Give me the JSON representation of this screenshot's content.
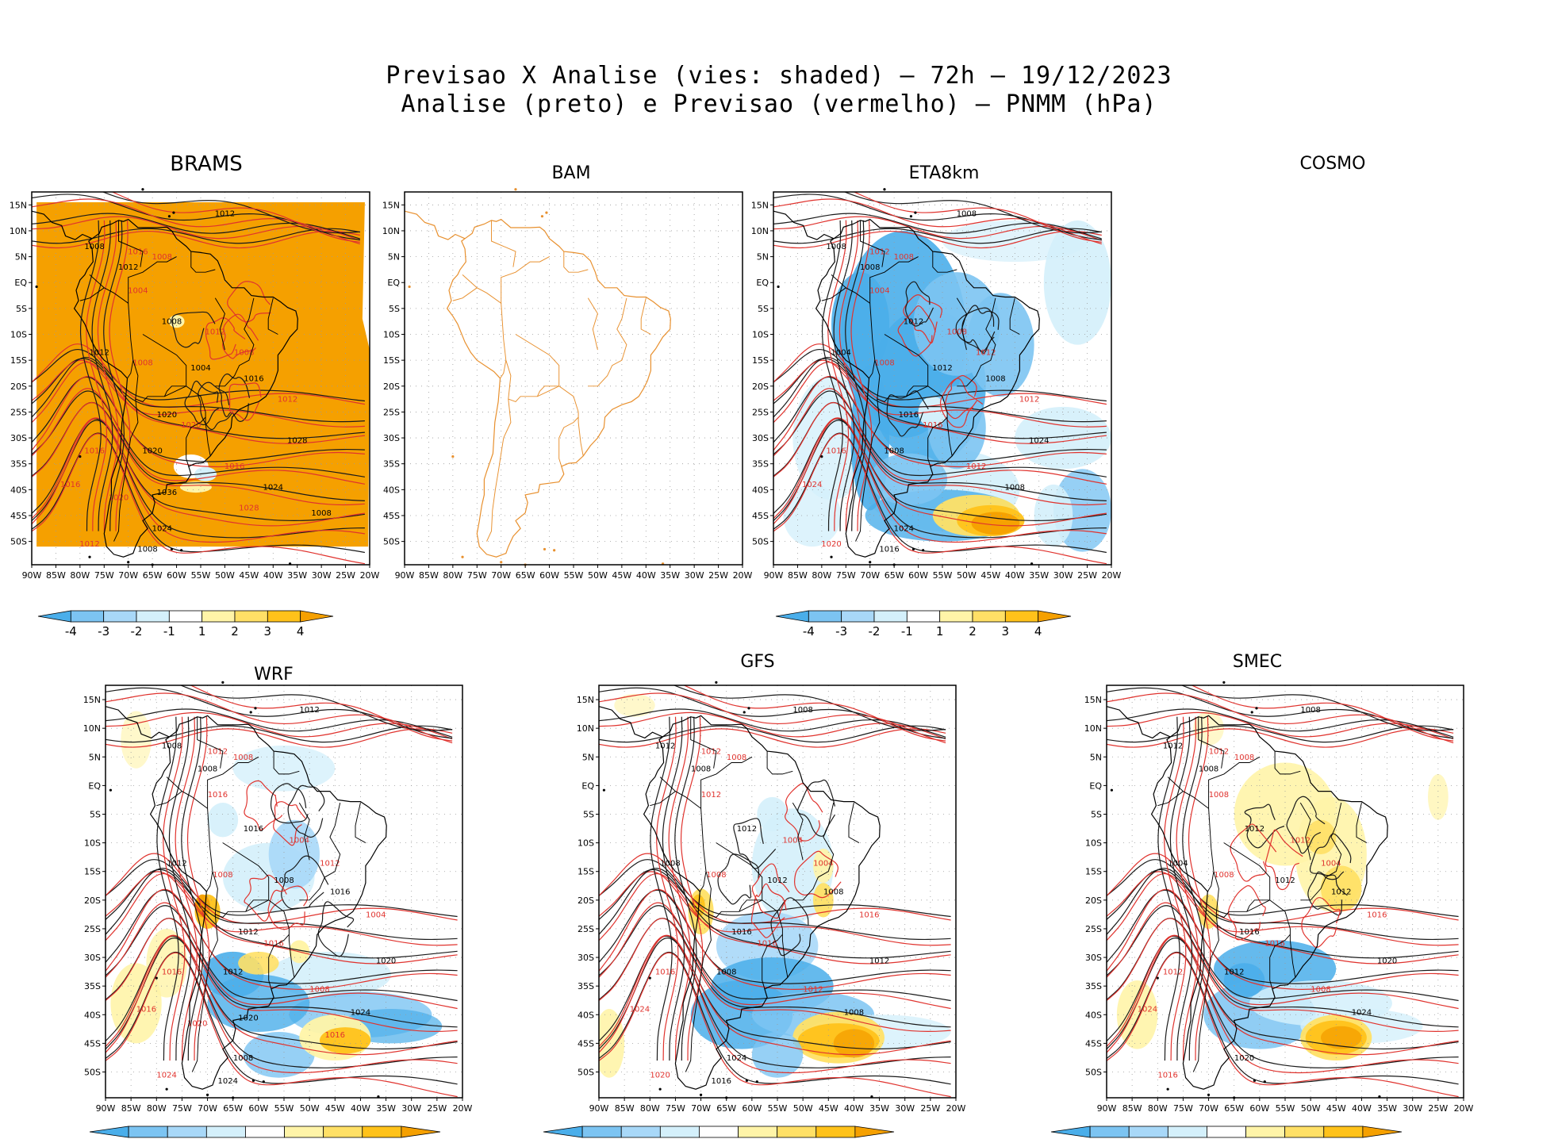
{
  "header": {
    "line1": "Previsao X Analise (vies: shaded) – 72h – 19/12/2023",
    "line2": "Analise (preto) e Previsao (vermelho) – PNMM (hPa)"
  },
  "axes": {
    "lat_labels": [
      "15N",
      "10N",
      "5N",
      "EQ",
      "5S",
      "10S",
      "15S",
      "20S",
      "25S",
      "30S",
      "35S",
      "40S",
      "45S",
      "50S"
    ],
    "lon_labels": [
      "90W",
      "85W",
      "80W",
      "75W",
      "70W",
      "65W",
      "60W",
      "55W",
      "50W",
      "45W",
      "40W",
      "35W",
      "30W",
      "25W",
      "20W"
    ]
  },
  "colorbar": {
    "labels": [
      "-4",
      "-3",
      "-2",
      "-1",
      "1",
      "2",
      "3",
      "4"
    ],
    "colors": [
      "#4aaeea",
      "#7cc4f2",
      "#a8d8f8",
      "#d4f0fb",
      "#ffffff",
      "#fff4a8",
      "#ffe066",
      "#ffc21a",
      "#f5a000"
    ]
  },
  "colors": {
    "analysis": "#1a1a1a",
    "forecast": "#e0332e",
    "bam_coast": "#e8902e",
    "brams_fill": "#f5a000"
  },
  "panels": {
    "brams": {
      "title": "BRAMS"
    },
    "bam": {
      "title": "BAM"
    },
    "eta": {
      "title": "ETA8km"
    },
    "cosmo": {
      "title": "COSMO"
    },
    "wrf": {
      "title": "WRF"
    },
    "gfs": {
      "title": "GFS"
    },
    "smec": {
      "title": "SMEC"
    }
  },
  "isobar_labels": {
    "brams": [
      "1012",
      "1016",
      "1008",
      "1008",
      "1012",
      "1004",
      "1008",
      "1012",
      "1012",
      "1008",
      "1004",
      "1008",
      "1016",
      "1012",
      "1020",
      "1020",
      "1028",
      "1016",
      "1020",
      "1016",
      "1024",
      "1016",
      "1024",
      "1012",
      "1008",
      "1020",
      "1036",
      "1028",
      "1008"
    ],
    "eta": [
      "1008",
      "1012",
      "1008",
      "1008",
      "1008",
      "1004",
      "1012",
      "1008",
      "1004",
      "1008",
      "1012",
      "1012",
      "1008",
      "1012",
      "1016",
      "1016",
      "1024",
      "1016",
      "1008",
      "1012",
      "1008",
      "1024",
      "1024",
      "1020",
      "1016"
    ],
    "wrf": [
      "1012",
      "1012",
      "1008",
      "1008",
      "1008",
      "1016",
      "1016",
      "1004",
      "1012",
      "1008",
      "1008",
      "1012",
      "1016",
      "1004",
      "1012",
      "1016",
      "1020",
      "1016",
      "1012",
      "1008",
      "1024",
      "1016",
      "1008",
      "1024",
      "1024",
      "1020",
      "1020",
      "1016"
    ],
    "gfs": [
      "1008",
      "1012",
      "1012",
      "1008",
      "1008",
      "1012",
      "1012",
      "1004",
      "1008",
      "1008",
      "1012",
      "1004",
      "1008",
      "1016",
      "1016",
      "1016",
      "1012",
      "1016",
      "1008",
      "1012",
      "1008",
      "1024",
      "1024",
      "1020",
      "1016"
    ],
    "smec": [
      "1008",
      "1012",
      "1012",
      "1008",
      "1008",
      "1008",
      "1012",
      "1012",
      "1004",
      "1008",
      "1012",
      "1004",
      "1012",
      "1016",
      "1016",
      "1016",
      "1020",
      "1012",
      "1012",
      "1008",
      "1024",
      "1024",
      "1020",
      "1016"
    ]
  }
}
